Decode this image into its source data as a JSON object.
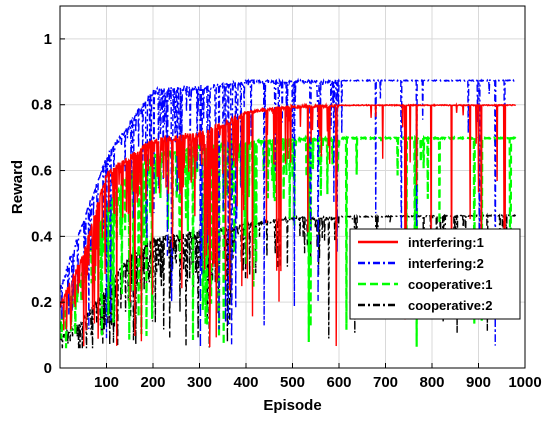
{
  "chart_data": {
    "type": "line",
    "xlabel": "Episode",
    "ylabel": "Reward",
    "xlim": [
      0,
      1000
    ],
    "ylim": [
      0,
      1.1
    ],
    "xticks": [
      100,
      200,
      300,
      400,
      500,
      600,
      700,
      800,
      900,
      1000
    ],
    "yticks": [
      0,
      0.2,
      0.4,
      0.6,
      0.8,
      1
    ],
    "ytick_labels": [
      "0",
      "0.2",
      "0.4",
      "0.6",
      "0.8",
      "1"
    ],
    "grid": true,
    "legend_position": "lower-right",
    "episodes": 980,
    "series": [
      {
        "name": "interfering:1",
        "color": "#ff0000",
        "dash": "solid",
        "plateau": 0.8,
        "keypoints": [
          [
            0,
            0.2
          ],
          [
            50,
            0.35
          ],
          [
            100,
            0.6
          ],
          [
            150,
            0.65
          ],
          [
            200,
            0.7
          ],
          [
            300,
            0.72
          ],
          [
            400,
            0.78
          ],
          [
            500,
            0.8
          ],
          [
            700,
            0.8
          ],
          [
            880,
            0.8
          ],
          [
            980,
            0.8
          ]
        ]
      },
      {
        "name": "interfering:2",
        "color": "#0000ff",
        "dash": "dashdot",
        "plateau": 0.875,
        "keypoints": [
          [
            0,
            0.25
          ],
          [
            50,
            0.45
          ],
          [
            100,
            0.65
          ],
          [
            150,
            0.75
          ],
          [
            200,
            0.85
          ],
          [
            300,
            0.86
          ],
          [
            400,
            0.875
          ],
          [
            600,
            0.875
          ],
          [
            980,
            0.875
          ]
        ]
      },
      {
        "name": "cooperative:1",
        "color": "#00ff00",
        "dash": "dashed",
        "plateau": 0.7,
        "keypoints": [
          [
            0,
            0.15
          ],
          [
            50,
            0.3
          ],
          [
            100,
            0.5
          ],
          [
            150,
            0.6
          ],
          [
            200,
            0.65
          ],
          [
            300,
            0.68
          ],
          [
            500,
            0.7
          ],
          [
            980,
            0.7
          ]
        ]
      },
      {
        "name": "cooperative:2",
        "color": "#000000",
        "dash": "dashdot",
        "plateau": 0.465,
        "keypoints": [
          [
            0,
            0.1
          ],
          [
            50,
            0.15
          ],
          [
            100,
            0.25
          ],
          [
            150,
            0.35
          ],
          [
            200,
            0.4
          ],
          [
            300,
            0.42
          ],
          [
            400,
            0.44
          ],
          [
            500,
            0.46
          ],
          [
            980,
            0.465
          ]
        ]
      }
    ]
  }
}
